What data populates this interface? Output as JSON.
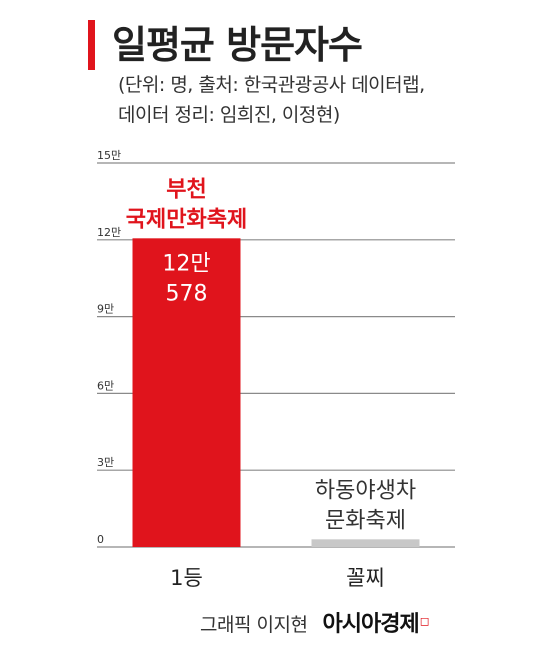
{
  "title": "일평균 방문자수",
  "subtitle_line1": "(단위: 명, 출처: 한국관광공사 데이터랩,",
  "subtitle_line2": "데이터 정리: 임희진, 이정현)",
  "footer": {
    "credit": "그래픽 이지현",
    "brand": "아시아경제"
  },
  "colors": {
    "accent": "#e0141c",
    "secondary_bar": "#c8c8c8",
    "text": "#222222"
  },
  "chart_data": {
    "type": "bar",
    "categories": [
      "1등",
      "꼴찌"
    ],
    "values": [
      120578,
      3000
    ],
    "ylim": [
      0,
      150000
    ],
    "yticks": [
      0,
      30000,
      60000,
      90000,
      120000,
      150000
    ],
    "ytick_labels": [
      "0",
      "3만",
      "6만",
      "9만",
      "12만",
      "15만"
    ],
    "grid": true,
    "bar_colors": [
      "#e0141c",
      "#c8c8c8"
    ],
    "bar_names": [
      [
        "부천",
        "국제만화축제"
      ],
      [
        "하동야생차",
        "문화축제"
      ]
    ],
    "value_labels": [
      [
        "12만",
        "578"
      ],
      []
    ]
  }
}
